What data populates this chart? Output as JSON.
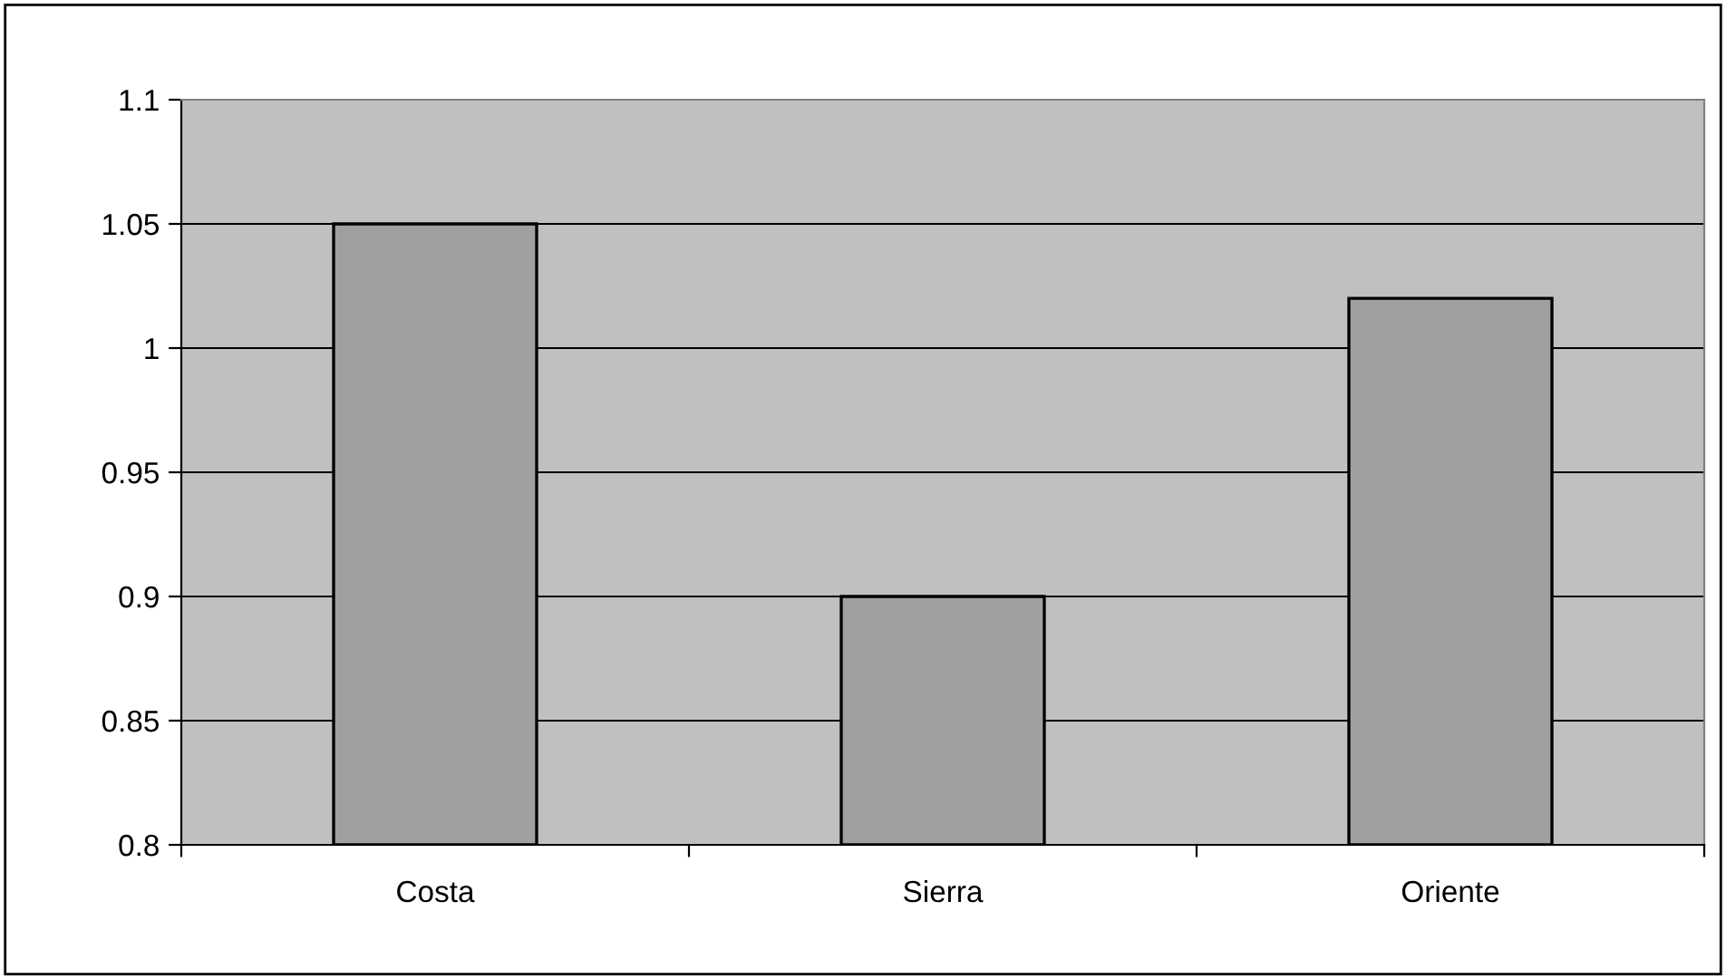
{
  "chart_data": {
    "type": "bar",
    "categories": [
      "Costa",
      "Sierra",
      "Oriente"
    ],
    "values": [
      1.05,
      0.9,
      1.02
    ],
    "color": "#a0a0a0",
    "ylim": [
      0.8,
      1.1
    ],
    "yticks": [
      0.8,
      0.85,
      0.9,
      0.95,
      1,
      1.05,
      1.1
    ],
    "grid": "y",
    "legend": false
  }
}
